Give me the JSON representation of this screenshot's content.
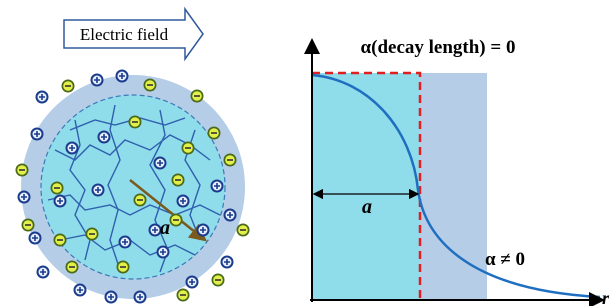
{
  "left_panel": {
    "field_label": "Electric field",
    "radius_label": "a"
  },
  "right_panel": {
    "title": "α(decay length) = 0",
    "width_label": "a",
    "decay_label": "α ≠ 0",
    "axis_label": "r"
  }
}
